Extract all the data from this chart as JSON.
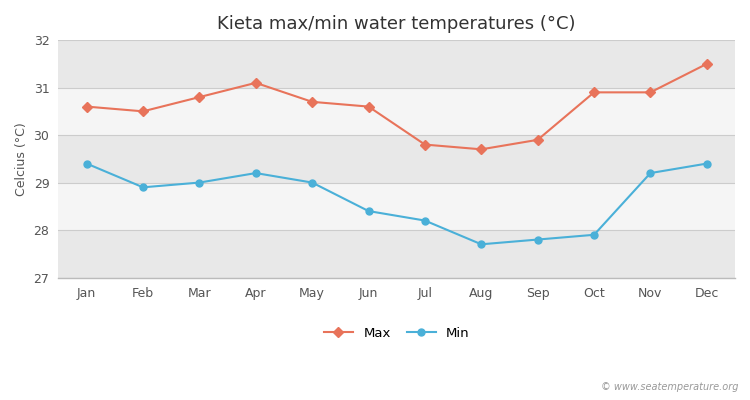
{
  "title": "Kieta max/min water temperatures (°C)",
  "ylabel": "Celcius (°C)",
  "months": [
    "Jan",
    "Feb",
    "Mar",
    "Apr",
    "May",
    "Jun",
    "Jul",
    "Aug",
    "Sep",
    "Oct",
    "Nov",
    "Dec"
  ],
  "max_values": [
    30.6,
    30.5,
    30.8,
    31.1,
    30.7,
    30.6,
    29.8,
    29.7,
    29.9,
    30.9,
    30.9,
    31.5
  ],
  "min_values": [
    29.4,
    28.9,
    29.0,
    29.2,
    29.0,
    28.4,
    28.2,
    27.7,
    27.8,
    27.9,
    29.2,
    29.4
  ],
  "max_color": "#e8735a",
  "min_color": "#4ab0d8",
  "ylim": [
    27,
    32
  ],
  "yticks": [
    27,
    28,
    29,
    30,
    31,
    32
  ],
  "band_colors": [
    "#e8e8e8",
    "#f5f5f5",
    "#e8e8e8",
    "#f5f5f5",
    "#e8e8e8"
  ],
  "fig_bg_color": "#ffffff",
  "watermark": "© www.seatemperature.org",
  "legend_labels": [
    "Max",
    "Min"
  ],
  "title_fontsize": 13,
  "label_fontsize": 9,
  "tick_fontsize": 9
}
